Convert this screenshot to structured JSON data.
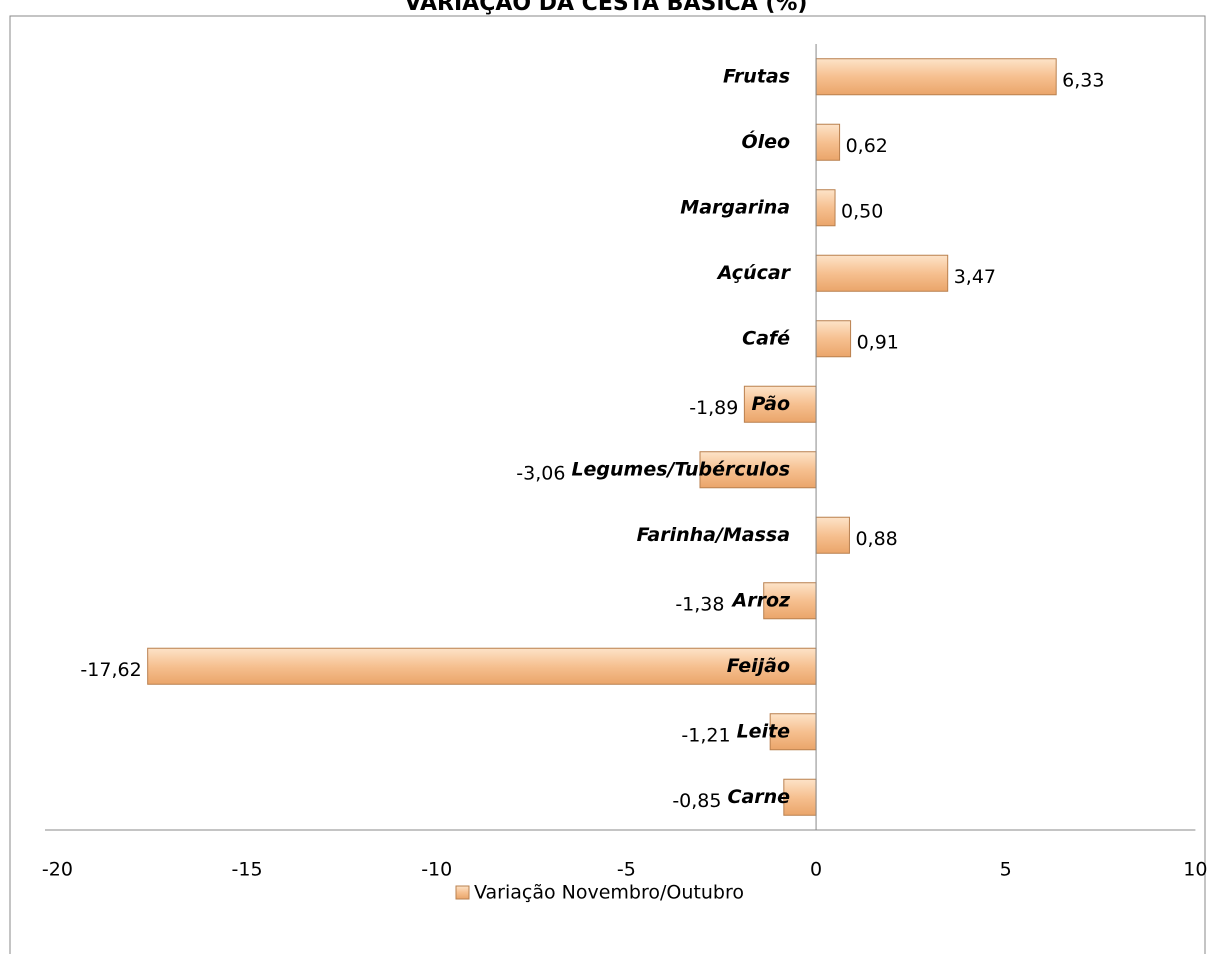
{
  "chart_data": {
    "type": "hbar",
    "title": "VARIAÇÃO DA CESTA BÁSICA (%)",
    "categories": [
      "Carne",
      "Leite",
      "Feijão",
      "Arroz",
      "Farinha/Massa",
      "Legumes/Tubérculos",
      "Pão",
      "Café",
      "Açúcar",
      "Margarina",
      "Óleo",
      "Frutas"
    ],
    "series": [
      {
        "name": "Variação Novembro/Outubro",
        "color": "#f6c090",
        "values": [
          -0.85,
          -1.21,
          -17.62,
          -1.38,
          0.88,
          -3.06,
          -1.89,
          0.91,
          3.47,
          0.5,
          0.62,
          6.33
        ],
        "value_labels": [
          "-0,85",
          "-1,21",
          "-17,62",
          "-1,38",
          "0,88",
          "-3,06",
          "-1,89",
          "0,91",
          "3,47",
          "0,50",
          "0,62",
          "6,33"
        ]
      }
    ],
    "xlim": [
      -20,
      10
    ],
    "xticks": [
      -20,
      -15,
      -10,
      -5,
      0,
      5,
      10
    ],
    "grid": false,
    "legend": "bottom"
  }
}
